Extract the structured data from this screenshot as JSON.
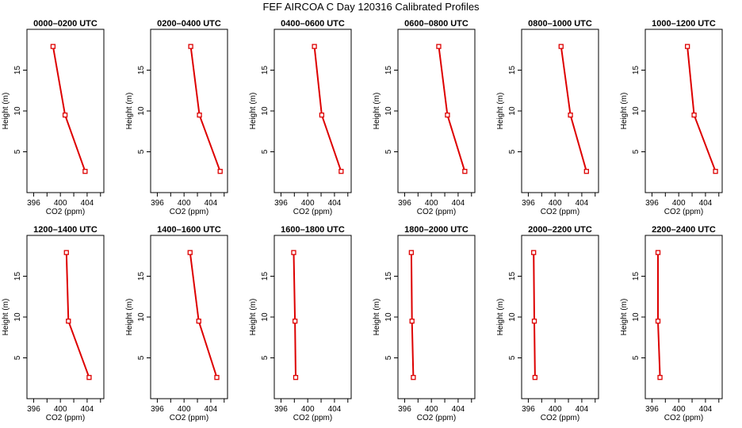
{
  "figure": {
    "title": "FEF AIRCOA C  Day 120316  Calibrated Profiles",
    "series_color": "#dd0000"
  },
  "chart_data": [
    {
      "type": "line",
      "title": "0000–0200 UTC",
      "xlabel": "CO2 (ppm)",
      "ylabel": "Height (m)",
      "xlim": [
        395,
        406.5
      ],
      "ylim": [
        0,
        20
      ],
      "x_ticks": [
        396,
        400,
        404
      ],
      "x_tick_labels": [
        "396",
        "400",
        "404"
      ],
      "y_ticks": [
        5,
        10,
        15
      ],
      "y_tick_labels": [
        "5",
        "10",
        "15"
      ],
      "series": [
        {
          "x": [
            398.9,
            400.7,
            403.7
          ],
          "y": [
            17.9,
            9.5,
            2.6
          ]
        }
      ]
    },
    {
      "type": "line",
      "title": "0200–0400 UTC",
      "xlabel": "CO2 (ppm)",
      "ylabel": "Height (m)",
      "xlim": [
        395,
        406.5
      ],
      "ylim": [
        0,
        20
      ],
      "x_ticks": [
        396,
        400,
        404
      ],
      "x_tick_labels": [
        "396",
        "400",
        "404"
      ],
      "y_ticks": [
        5,
        10,
        15
      ],
      "y_tick_labels": [
        "5",
        "10",
        "15"
      ],
      "series": [
        {
          "x": [
            401.0,
            402.3,
            405.4
          ],
          "y": [
            17.9,
            9.5,
            2.6
          ]
        }
      ]
    },
    {
      "type": "line",
      "title": "0400–0600 UTC",
      "xlabel": "CO2 (ppm)",
      "ylabel": "Height (m)",
      "xlim": [
        395,
        406.5
      ],
      "ylim": [
        0,
        20
      ],
      "x_ticks": [
        396,
        400,
        404
      ],
      "x_tick_labels": [
        "396",
        "400",
        "404"
      ],
      "y_ticks": [
        5,
        10,
        15
      ],
      "y_tick_labels": [
        "5",
        "10",
        "15"
      ],
      "series": [
        {
          "x": [
            401.0,
            402.1,
            405.0
          ],
          "y": [
            17.9,
            9.5,
            2.6
          ]
        }
      ]
    },
    {
      "type": "line",
      "title": "0600–0800 UTC",
      "xlabel": "CO2 (ppm)",
      "ylabel": "Height (m)",
      "xlim": [
        395,
        406.5
      ],
      "ylim": [
        0,
        20
      ],
      "x_ticks": [
        396,
        400,
        404
      ],
      "x_tick_labels": [
        "396",
        "400",
        "404"
      ],
      "y_ticks": [
        5,
        10,
        15
      ],
      "y_tick_labels": [
        "5",
        "10",
        "15"
      ],
      "series": [
        {
          "x": [
            401.1,
            402.4,
            405.0
          ],
          "y": [
            17.9,
            9.5,
            2.6
          ]
        }
      ]
    },
    {
      "type": "line",
      "title": "0800–1000 UTC",
      "xlabel": "CO2 (ppm)",
      "ylabel": "Height (m)",
      "xlim": [
        395,
        406.5
      ],
      "ylim": [
        0,
        20
      ],
      "x_ticks": [
        396,
        400,
        404
      ],
      "x_tick_labels": [
        "396",
        "400",
        "404"
      ],
      "y_ticks": [
        5,
        10,
        15
      ],
      "y_tick_labels": [
        "5",
        "10",
        "15"
      ],
      "series": [
        {
          "x": [
            400.9,
            402.3,
            404.7
          ],
          "y": [
            17.9,
            9.5,
            2.6
          ]
        }
      ]
    },
    {
      "type": "line",
      "title": "1000–1200 UTC",
      "xlabel": "CO2 (ppm)",
      "ylabel": "Height (m)",
      "xlim": [
        395,
        406.5
      ],
      "ylim": [
        0,
        20
      ],
      "x_ticks": [
        396,
        400,
        404
      ],
      "x_tick_labels": [
        "396",
        "400",
        "404"
      ],
      "y_ticks": [
        5,
        10,
        15
      ],
      "y_tick_labels": [
        "5",
        "10",
        "15"
      ],
      "series": [
        {
          "x": [
            401.3,
            402.3,
            405.5
          ],
          "y": [
            17.9,
            9.5,
            2.6
          ]
        }
      ]
    },
    {
      "type": "line",
      "title": "1200–1400 UTC",
      "xlabel": "CO2 (ppm)",
      "ylabel": "Height (m)",
      "xlim": [
        395,
        406.5
      ],
      "ylim": [
        0,
        20
      ],
      "x_ticks": [
        396,
        400,
        404
      ],
      "x_tick_labels": [
        "396",
        "400",
        "404"
      ],
      "y_ticks": [
        5,
        10,
        15
      ],
      "y_tick_labels": [
        "5",
        "10",
        "15"
      ],
      "series": [
        {
          "x": [
            400.9,
            401.2,
            404.3
          ],
          "y": [
            17.9,
            9.5,
            2.6
          ]
        }
      ]
    },
    {
      "type": "line",
      "title": "1400–1600 UTC",
      "xlabel": "CO2 (ppm)",
      "ylabel": "Height (m)",
      "xlim": [
        395,
        406.5
      ],
      "ylim": [
        0,
        20
      ],
      "x_ticks": [
        396,
        400,
        404
      ],
      "x_tick_labels": [
        "396",
        "400",
        "404"
      ],
      "y_ticks": [
        5,
        10,
        15
      ],
      "y_tick_labels": [
        "5",
        "10",
        "15"
      ],
      "series": [
        {
          "x": [
            400.9,
            402.2,
            404.9
          ],
          "y": [
            17.9,
            9.5,
            2.6
          ]
        }
      ]
    },
    {
      "type": "line",
      "title": "1600–1800 UTC",
      "xlabel": "CO2 (ppm)",
      "ylabel": "Height (m)",
      "xlim": [
        395,
        406.5
      ],
      "ylim": [
        0,
        20
      ],
      "x_ticks": [
        396,
        400,
        404
      ],
      "x_tick_labels": [
        "396",
        "400",
        "404"
      ],
      "y_ticks": [
        5,
        10,
        15
      ],
      "y_tick_labels": [
        "5",
        "10",
        "15"
      ],
      "series": [
        {
          "x": [
            397.9,
            398.1,
            398.2
          ],
          "y": [
            17.9,
            9.5,
            2.6
          ]
        }
      ]
    },
    {
      "type": "line",
      "title": "1800–2000 UTC",
      "xlabel": "CO2 (ppm)",
      "ylabel": "Height (m)",
      "xlim": [
        395,
        406.5
      ],
      "ylim": [
        0,
        20
      ],
      "x_ticks": [
        396,
        400,
        404
      ],
      "x_tick_labels": [
        "396",
        "400",
        "404"
      ],
      "y_ticks": [
        5,
        10,
        15
      ],
      "y_tick_labels": [
        "5",
        "10",
        "15"
      ],
      "series": [
        {
          "x": [
            397.0,
            397.1,
            397.3
          ],
          "y": [
            17.9,
            9.5,
            2.6
          ]
        }
      ]
    },
    {
      "type": "line",
      "title": "2000–2200 UTC",
      "xlabel": "CO2 (ppm)",
      "ylabel": "Height (m)",
      "xlim": [
        395,
        406.5
      ],
      "ylim": [
        0,
        20
      ],
      "x_ticks": [
        396,
        400,
        404
      ],
      "x_tick_labels": [
        "396",
        "400",
        "404"
      ],
      "y_ticks": [
        5,
        10,
        15
      ],
      "y_tick_labels": [
        "5",
        "10",
        "15"
      ],
      "series": [
        {
          "x": [
            396.8,
            396.9,
            397.0
          ],
          "y": [
            17.9,
            9.5,
            2.6
          ]
        }
      ]
    },
    {
      "type": "line",
      "title": "2200–2400 UTC",
      "xlabel": "CO2 (ppm)",
      "ylabel": "Height (m)",
      "xlim": [
        395,
        406.5
      ],
      "ylim": [
        0,
        20
      ],
      "x_ticks": [
        396,
        400,
        404
      ],
      "x_tick_labels": [
        "396",
        "400",
        "404"
      ],
      "y_ticks": [
        5,
        10,
        15
      ],
      "y_tick_labels": [
        "5",
        "10",
        "15"
      ],
      "series": [
        {
          "x": [
            396.9,
            396.9,
            397.2
          ],
          "y": [
            17.9,
            9.5,
            2.6
          ]
        }
      ]
    }
  ]
}
